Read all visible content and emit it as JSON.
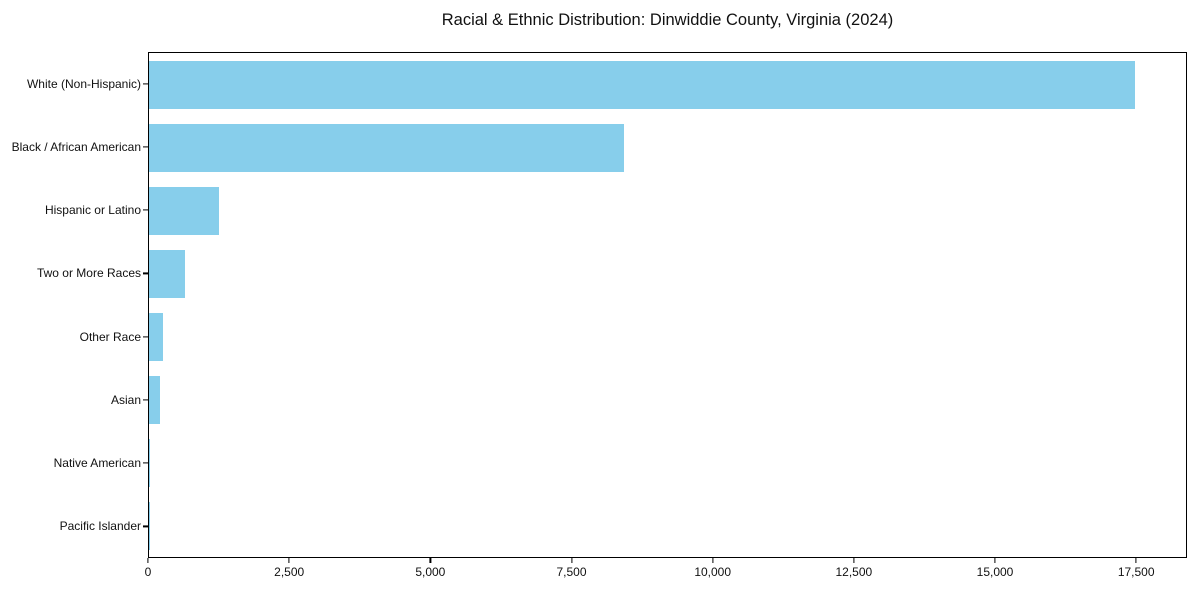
{
  "chart_data": {
    "type": "bar",
    "orientation": "horizontal",
    "title": "Racial & Ethnic Distribution: Dinwiddie County, Virginia (2024)",
    "categories": [
      "White (Non-Hispanic)",
      "Black / African American",
      "Hispanic or Latino",
      "Two or More Races",
      "Other Race",
      "Asian",
      "Native American",
      "Pacific Islander"
    ],
    "values": [
      17500,
      8420,
      1240,
      630,
      240,
      200,
      20,
      10
    ],
    "xlabel": "",
    "ylabel": "",
    "xlim": [
      0,
      18400
    ],
    "x_ticks": [
      {
        "value": 0,
        "label": "0"
      },
      {
        "value": 2500,
        "label": "2,500"
      },
      {
        "value": 5000,
        "label": "5,000"
      },
      {
        "value": 7500,
        "label": "7,500"
      },
      {
        "value": 10000,
        "label": "10,000"
      },
      {
        "value": 12500,
        "label": "12,500"
      },
      {
        "value": 15000,
        "label": "15,000"
      },
      {
        "value": 17500,
        "label": "17,500"
      }
    ],
    "bar_color": "#87CEEB",
    "grid": false,
    "legend_position": "none"
  }
}
